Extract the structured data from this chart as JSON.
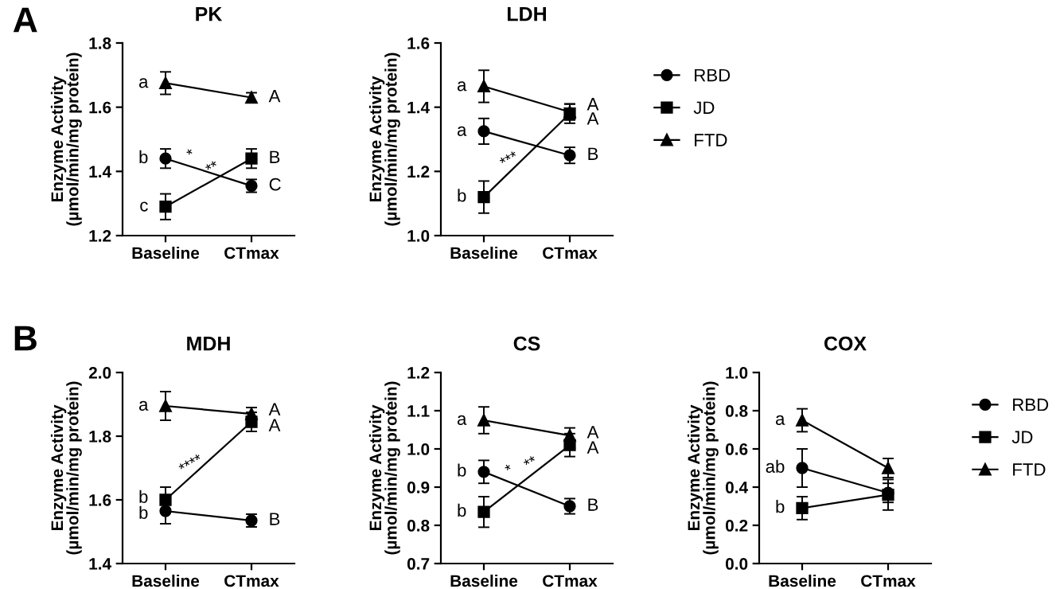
{
  "chart_data": [
    {
      "type": "line",
      "title": "PK",
      "ylabel": "Enzyme Activity\n(µmol/min/mg protein)",
      "categories": [
        "Baseline",
        "CTmax"
      ],
      "ylim": [
        1.2,
        1.8
      ],
      "yticks": [
        1.2,
        1.4,
        1.6,
        1.8
      ],
      "grid": false,
      "legend": false,
      "series": [
        {
          "color": "#000000",
          "marker": "circle",
          "values": [
            1.44,
            1.355
          ],
          "errors": [
            0.03,
            0.02
          ]
        },
        {
          "color": "#000000",
          "marker": "square",
          "values": [
            1.29,
            1.44
          ],
          "errors": [
            0.04,
            0.03
          ]
        },
        {
          "color": "#000000",
          "marker": "triangle",
          "values": [
            1.675,
            1.63
          ],
          "errors": [
            0.035,
            0.015
          ]
        }
      ],
      "annotations": [
        "A",
        {
          "text": "b",
          "x": "Baseline",
          "y": 1.44
        },
        {
          "text": "c",
          "x": "Baseline",
          "y": 1.29
        },
        {
          "text": "a",
          "x": "Baseline",
          "y": 1.675
        },
        {
          "text": "C",
          "x": "CTmax",
          "y": 1.355
        },
        {
          "text": "B",
          "x": "CTmax",
          "y": 1.44
        },
        {
          "text": "A",
          "x": "CTmax",
          "y": 1.63
        },
        "*",
        "**"
      ]
    },
    {
      "type": "line",
      "title": "LDH",
      "ylabel": "Enzyme Activity\n(µmol/min/mg protein)",
      "categories": [
        "Baseline",
        "CTmax"
      ],
      "ylim": [
        1.0,
        1.6
      ],
      "yticks": [
        {
          "value": 1.0,
          "label": "1.0"
        },
        1.2,
        1.4,
        1.6
      ],
      "grid": false,
      "legend": "right",
      "series": [
        {
          "name": "RBD",
          "color": "#000000",
          "marker": "circle",
          "values": [
            1.325,
            1.25
          ],
          "errors": [
            0.04,
            0.025
          ]
        },
        {
          "name": "JD",
          "color": "#000000",
          "marker": "square",
          "values": [
            1.12,
            1.38
          ],
          "errors": [
            0.05,
            0.03
          ]
        },
        {
          "name": "FTD",
          "color": "#000000",
          "marker": "triangle",
          "values": [
            1.465,
            1.385
          ],
          "errors": [
            0.05,
            0.025
          ]
        }
      ],
      "annotations": [
        {
          "text": "a",
          "x": "Baseline",
          "y": 1.325
        },
        {
          "text": "b",
          "x": "Baseline",
          "y": 1.12
        },
        {
          "text": "a",
          "x": "Baseline",
          "y": 1.465
        },
        {
          "text": "B",
          "x": "CTmax",
          "y": 1.25
        },
        {
          "text": "A",
          "x": "CTmax",
          "y": 1.36
        },
        {
          "text": "A",
          "x": "CTmax",
          "y": 1.405
        },
        "***"
      ]
    },
    {
      "type": "line",
      "title": "MDH",
      "ylabel": "Enzyme Activity\n(µmol/min/mg protein)",
      "categories": [
        "Baseline",
        "CTmax"
      ],
      "ylim": [
        1.4,
        2.0
      ],
      "yticks": [
        1.4,
        1.6,
        1.8,
        {
          "value": 2.0,
          "label": "2.0"
        }
      ],
      "grid": false,
      "legend": false,
      "series": [
        {
          "color": "#000000",
          "marker": "circle",
          "values": [
            1.565,
            1.535
          ],
          "errors": [
            0.04,
            0.02
          ]
        },
        {
          "color": "#000000",
          "marker": "square",
          "values": [
            1.6,
            1.845
          ],
          "errors": [
            0.04,
            0.03
          ]
        },
        {
          "color": "#000000",
          "marker": "triangle",
          "values": [
            1.895,
            1.87
          ],
          "errors": [
            0.045,
            0.02
          ]
        }
      ],
      "annotations": [
        "B",
        {
          "text": "b",
          "x": "Baseline",
          "y": 1.555
        },
        {
          "text": "b",
          "x": "Baseline",
          "y": 1.605
        },
        {
          "text": "a",
          "x": "Baseline",
          "y": 1.895
        },
        {
          "text": "B",
          "x": "CTmax",
          "y": 1.535
        },
        {
          "text": "A",
          "x": "CTmax",
          "y": 1.83
        },
        {
          "text": "A",
          "x": "CTmax",
          "y": 1.88
        },
        "****"
      ]
    },
    {
      "type": "line",
      "title": "CS",
      "ylabel": "Enzyme Activity\n(µmol/min/mg protein)",
      "categories": [
        "Baseline",
        "CTmax"
      ],
      "ylim": [
        0.7,
        1.2
      ],
      "yticks": [
        0.7,
        0.8,
        0.9,
        {
          "value": 1.0,
          "label": "1.0"
        },
        1.1,
        1.2
      ],
      "grid": false,
      "legend": false,
      "series": [
        {
          "color": "#000000",
          "marker": "circle",
          "values": [
            0.94,
            0.85
          ],
          "errors": [
            0.03,
            0.02
          ]
        },
        {
          "color": "#000000",
          "marker": "square",
          "values": [
            0.835,
            1.01
          ],
          "errors": [
            0.04,
            0.03
          ]
        },
        {
          "color": "#000000",
          "marker": "triangle",
          "values": [
            1.075,
            1.035
          ],
          "errors": [
            0.035,
            0.02
          ]
        }
      ],
      "annotations": [
        {
          "text": "b",
          "x": "Baseline",
          "y": 0.94
        },
        {
          "text": "b",
          "x": "Baseline",
          "y": 0.835
        },
        {
          "text": "a",
          "x": "Baseline",
          "y": 1.075
        },
        {
          "text": "B",
          "x": "CTmax",
          "y": 0.85
        },
        {
          "text": "A",
          "x": "CTmax",
          "y": 1.0
        },
        {
          "text": "A",
          "x": "CTmax",
          "y": 1.04
        },
        "*",
        "**"
      ]
    },
    {
      "type": "line",
      "title": "COX",
      "ylabel": "Enzyme Activity\n(µmol/min/mg protein)",
      "categories": [
        "Baseline",
        "CTmax"
      ],
      "ylim": [
        0.0,
        1.0
      ],
      "yticks": [
        {
          "value": 0.0,
          "label": "0.0"
        },
        0.2,
        0.4,
        0.6,
        0.8,
        {
          "value": 1.0,
          "label": "1.0"
        }
      ],
      "grid": false,
      "legend": "right",
      "series": [
        {
          "name": "RBD",
          "color": "#000000",
          "marker": "circle",
          "values": [
            0.5,
            0.37
          ],
          "errors": [
            0.1,
            0.05
          ]
        },
        {
          "name": "JD",
          "color": "#000000",
          "marker": "square",
          "values": [
            0.29,
            0.36
          ],
          "errors": [
            0.06,
            0.08
          ]
        },
        {
          "name": "FTD",
          "color": "#000000",
          "marker": "triangle",
          "values": [
            0.75,
            0.5
          ],
          "errors": [
            0.06,
            0.05
          ]
        }
      ],
      "annotations": [
        {
          "text": "ab",
          "x": "Baseline",
          "y": 0.5
        },
        {
          "text": "b",
          "x": "Baseline",
          "y": 0.29
        },
        {
          "text": "a",
          "x": "Baseline",
          "y": 0.75
        }
      ]
    }
  ]
}
